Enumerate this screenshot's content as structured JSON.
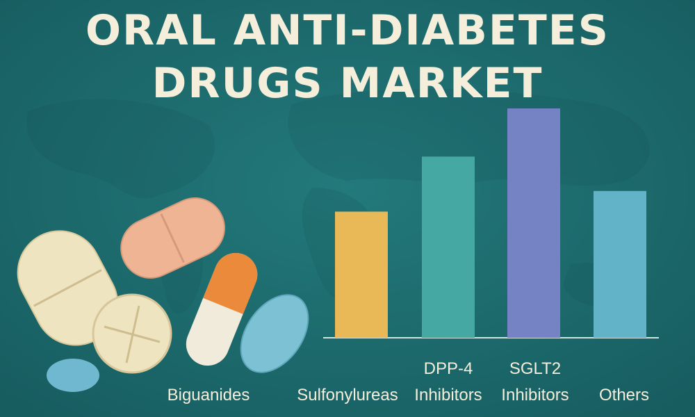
{
  "chart_data": {
    "type": "bar",
    "title": "ORAL ANTI-DIABETES DRUGS MARKET",
    "categories": [
      "Biguanides",
      "Sulfonylureas",
      "DPP-4 Inhibitors",
      "SGLT2 Inhibitors",
      "Others"
    ],
    "values": [
      null,
      55,
      79,
      100,
      64
    ],
    "colors": [
      "#e9b957",
      "#e9b957",
      "#45a8a3",
      "#7583c4",
      "#62b3c8"
    ],
    "ylim": [
      0,
      100
    ]
  }
}
